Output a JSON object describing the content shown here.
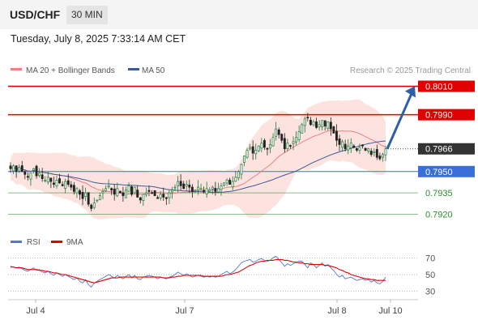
{
  "header": {
    "symbol": "USD/CHF",
    "timeframe": "30 MIN",
    "datetime": "Tuesday, July 8, 2025 7:33:14 AM CET"
  },
  "legend": {
    "ma20_label": "MA 20 + Bollinger Bands",
    "ma50_label": "MA 50",
    "source": "Research © 2025 Trading Central",
    "ma20_color": "#f08080",
    "ma50_color": "#3a5a9a"
  },
  "levels": [
    {
      "value": 0.801,
      "label": "0.8010",
      "kind": "resistance",
      "color": "#e00000"
    },
    {
      "value": 0.799,
      "label": "0.7990",
      "kind": "resistance",
      "color": "#e00000"
    },
    {
      "value": 0.7966,
      "label": "0.7966",
      "kind": "last",
      "color": "#333333"
    },
    {
      "value": 0.795,
      "label": "0.7950",
      "kind": "pivot",
      "color": "#3a6fd8"
    },
    {
      "value": 0.7935,
      "label": "0.7935",
      "kind": "support",
      "color": "#2e8b2e"
    },
    {
      "value": 0.792,
      "label": "0.7920",
      "kind": "support",
      "color": "#2e8b2e"
    }
  ],
  "rsi_legend": {
    "rsi_label": "RSI",
    "ma_label": "9MA",
    "rsi_color": "#5577cc",
    "ma_color": "#e00000"
  },
  "rsi_levels": [
    "70",
    "50",
    "30"
  ],
  "x_labels": [
    "Jul 4",
    "Jul 7",
    "Jul 8",
    "Jul 10"
  ],
  "chart_data": {
    "type": "candlestick",
    "symbol": "USD/CHF",
    "price_ylim": [
      0.791,
      0.8016
    ],
    "rsi_ylim": [
      20,
      80
    ],
    "levels": [
      0.801,
      0.799,
      0.7966,
      0.795,
      0.7935,
      0.792
    ],
    "forecast_arrow": {
      "from": 0.7966,
      "to": 0.801
    },
    "close": [
      0.7952,
      0.7954,
      0.795,
      0.7953,
      0.795,
      0.7948,
      0.7946,
      0.7949,
      0.7952,
      0.7947,
      0.7949,
      0.7945,
      0.7944,
      0.7946,
      0.7943,
      0.7941,
      0.7944,
      0.7942,
      0.794,
      0.7943,
      0.7941,
      0.7939,
      0.7936,
      0.7938,
      0.7934,
      0.7931,
      0.7935,
      0.7927,
      0.7924,
      0.7928,
      0.793,
      0.7933,
      0.7936,
      0.7938,
      0.794,
      0.7937,
      0.7934,
      0.7938,
      0.7935,
      0.7933,
      0.7937,
      0.794,
      0.7934,
      0.7939,
      0.7932,
      0.793,
      0.7934,
      0.7935,
      0.7936,
      0.7935,
      0.7933,
      0.7931,
      0.7934,
      0.7932,
      0.7931,
      0.7935,
      0.7937,
      0.7939,
      0.7943,
      0.794,
      0.7938,
      0.7941,
      0.7939,
      0.7936,
      0.7937,
      0.7939,
      0.7938,
      0.7936,
      0.7938,
      0.7937,
      0.7939,
      0.7936,
      0.7938,
      0.794,
      0.7942,
      0.7944,
      0.7941,
      0.7943,
      0.7946,
      0.795,
      0.7955,
      0.7961,
      0.7965,
      0.7967,
      0.7963,
      0.7965,
      0.7968,
      0.797,
      0.7967,
      0.7966,
      0.7969,
      0.7974,
      0.798,
      0.7976,
      0.7972,
      0.7966,
      0.797,
      0.7968,
      0.7971,
      0.7974,
      0.7978,
      0.7983,
      0.7987,
      0.7988,
      0.7983,
      0.7985,
      0.7981,
      0.7983,
      0.7986,
      0.7982,
      0.7985,
      0.798,
      0.7977,
      0.7972,
      0.7969,
      0.7971,
      0.7966,
      0.7968,
      0.797,
      0.7967,
      0.7965,
      0.7967,
      0.7968,
      0.7965,
      0.7966,
      0.7962,
      0.7964,
      0.796,
      0.7959,
      0.7962,
      0.7966
    ],
    "rsi": [
      60,
      59,
      58,
      59,
      57,
      55,
      54,
      56,
      58,
      55,
      56,
      53,
      52,
      54,
      51,
      49,
      52,
      50,
      48,
      50,
      48,
      46,
      44,
      46,
      42,
      40,
      44,
      38,
      35,
      40,
      42,
      44,
      46,
      48,
      50,
      48,
      46,
      49,
      47,
      45,
      48,
      50,
      46,
      49,
      45,
      44,
      47,
      48,
      49,
      48,
      47,
      45,
      47,
      46,
      45,
      47,
      48,
      50,
      53,
      51,
      49,
      51,
      49,
      47,
      48,
      49,
      48,
      47,
      48,
      47,
      48,
      47,
      48,
      50,
      52,
      54,
      51,
      53,
      56,
      60,
      64,
      66,
      67,
      68,
      65,
      66,
      68,
      69,
      67,
      66,
      67,
      70,
      72,
      68,
      64,
      60,
      63,
      61,
      63,
      64,
      66,
      66,
      62,
      58,
      64,
      62,
      58,
      61,
      64,
      60,
      62,
      58,
      55,
      50,
      47,
      49,
      45,
      46,
      47,
      45,
      43,
      44,
      45,
      43,
      44,
      41,
      43,
      40,
      39,
      42,
      47
    ],
    "rsi_ma": [
      59,
      59,
      58,
      58,
      58,
      57,
      56,
      56,
      56,
      56,
      55,
      55,
      54,
      54,
      53,
      52,
      52,
      51,
      50,
      50,
      49,
      48,
      47,
      46,
      45,
      44,
      43,
      42,
      41,
      40,
      41,
      42,
      43,
      44,
      45,
      46,
      46,
      46,
      47,
      47,
      47,
      47,
      47,
      47,
      47,
      47,
      47,
      47,
      47,
      47,
      47,
      47,
      47,
      46,
      46,
      46,
      47,
      47,
      48,
      48,
      49,
      49,
      49,
      49,
      49,
      49,
      49,
      48,
      48,
      48,
      48,
      48,
      48,
      48,
      49,
      50,
      50,
      51,
      52,
      53,
      55,
      57,
      59,
      61,
      62,
      64,
      65,
      66,
      66,
      67,
      67,
      67,
      68,
      68,
      68,
      67,
      67,
      66,
      65,
      65,
      64,
      64,
      63,
      63,
      62,
      62,
      62,
      62,
      62,
      61,
      61,
      60,
      59,
      58,
      56,
      55,
      53,
      52,
      50,
      49,
      48,
      47,
      46,
      45,
      45,
      44,
      44,
      43,
      43,
      43,
      43
    ]
  }
}
